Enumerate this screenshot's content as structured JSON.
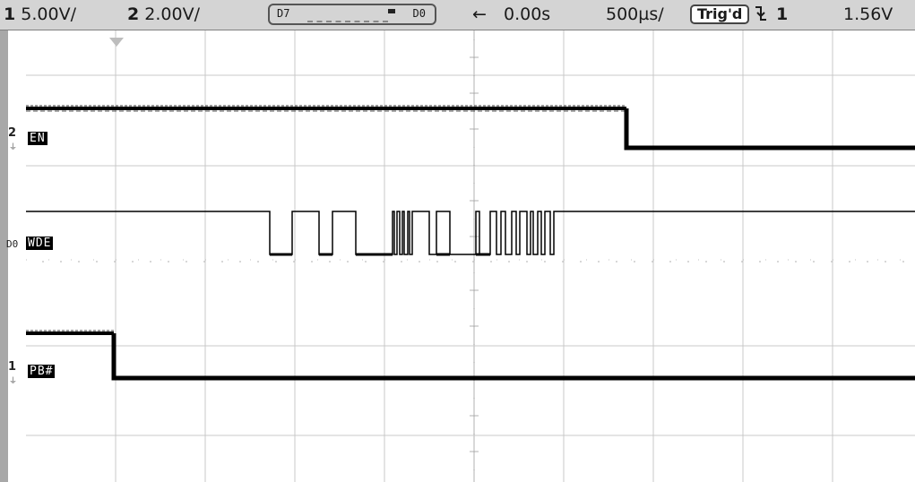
{
  "status_bar": {
    "ch1_num": "1",
    "ch1_scale": "5.00V/",
    "ch2_num": "2",
    "ch2_scale": "2.00V/",
    "digital_high": "D7",
    "digital_low": "D0",
    "delay_arrow": "←",
    "delay": "0.00s",
    "timebase": "500µs/",
    "trigger_state": "Trig'd",
    "trigger_slope_icon": "falling-edge-icon",
    "trigger_channel": "1",
    "trigger_level": "1.56V"
  },
  "channels": {
    "en": {
      "marker": "2",
      "label": "EN"
    },
    "wde": {
      "marker": "D0",
      "label": "WDE"
    },
    "pb": {
      "marker": "1",
      "label": "PB#"
    }
  },
  "colors": {
    "screen_bg": "#ffffff",
    "status_bg": "#d4d4d4",
    "trace": "#000000",
    "grid": "#c8c8c8"
  }
}
